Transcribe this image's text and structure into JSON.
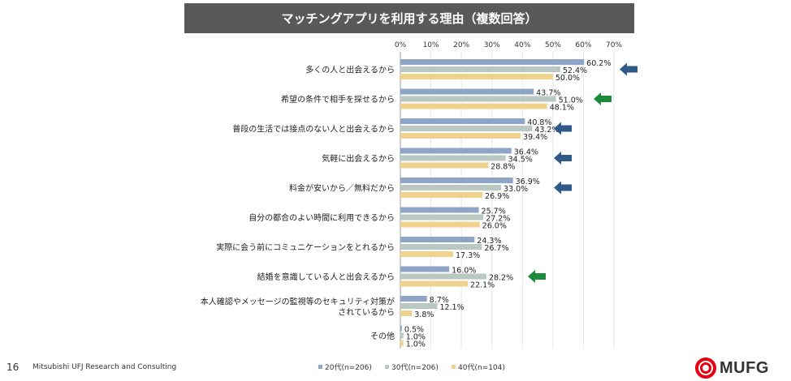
{
  "page": {
    "title": "マッチングアプリを利用する理由（複数回答）",
    "page_number": "16",
    "organization": "Mitsubishi UFJ Research and Consulting",
    "logo_text": "MUFG"
  },
  "colors": {
    "series_20": "#8ea5c8",
    "series_30": "#b9c8c2",
    "series_40": "#efd28c",
    "arrow_blue": "#2e5a8a",
    "arrow_green": "#1e8a3c",
    "logo_red": "#e60012"
  },
  "chart_data": {
    "type": "bar",
    "orientation": "horizontal",
    "title": "マッチングアプリを利用する理由（複数回答）",
    "xlim": [
      0,
      70
    ],
    "xticks": [
      "0%",
      "10%",
      "20%",
      "30%",
      "40%",
      "50%",
      "60%",
      "70%"
    ],
    "categories": [
      [
        "多くの人と出会えるから"
      ],
      [
        "希望の条件で相手を探せるから"
      ],
      [
        "普段の生活では接点のない人と出会えるから"
      ],
      [
        "気軽に出会えるから"
      ],
      [
        "料金が安いから／無料だから"
      ],
      [
        "自分の都合のよい時間に利用できるから"
      ],
      [
        "実際に会う前にコミュニケーションをとれるから"
      ],
      [
        "結婚を意識している人と出会えるから"
      ],
      [
        "本人確認やメッセージの監視等のセキュリティ対策が",
        "されているから"
      ],
      [
        "その他"
      ]
    ],
    "series": [
      {
        "name": "20代(n=206)",
        "values": [
          60.2,
          43.7,
          40.8,
          36.4,
          36.9,
          25.7,
          24.3,
          16.0,
          8.7,
          0.5
        ],
        "labels": [
          "60.2%",
          "43.7%",
          "40.8%",
          "36.4%",
          "36.9%",
          "25.7%",
          "24.3%",
          "16.0%",
          "8.7%",
          "0.5%"
        ]
      },
      {
        "name": "30代(n=206)",
        "values": [
          52.4,
          51.0,
          43.2,
          34.5,
          33.0,
          27.2,
          26.7,
          28.2,
          12.1,
          1.0
        ],
        "labels": [
          "52.4%",
          "51.0%",
          "43.2%",
          "34.5%",
          "33.0%",
          "27.2%",
          "26.7%",
          "28.2%",
          "12.1%",
          "1.0%"
        ]
      },
      {
        "name": "40代(n=104)",
        "values": [
          50.0,
          48.1,
          39.4,
          28.8,
          26.9,
          26.0,
          17.3,
          22.1,
          3.8,
          1.0
        ],
        "labels": [
          "50.0%",
          "48.1%",
          "39.4%",
          "28.8%",
          "26.9%",
          "26.0%",
          "17.3%",
          "22.1%",
          "3.8%",
          "1.0%"
        ]
      }
    ],
    "highlights": [
      {
        "category_index": 0,
        "color": "blue"
      },
      {
        "category_index": 1,
        "color": "green"
      },
      {
        "category_index": 2,
        "color": "blue"
      },
      {
        "category_index": 3,
        "color": "blue"
      },
      {
        "category_index": 4,
        "color": "blue"
      },
      {
        "category_index": 7,
        "color": "green"
      }
    ],
    "legend_position": "bottom-center"
  }
}
